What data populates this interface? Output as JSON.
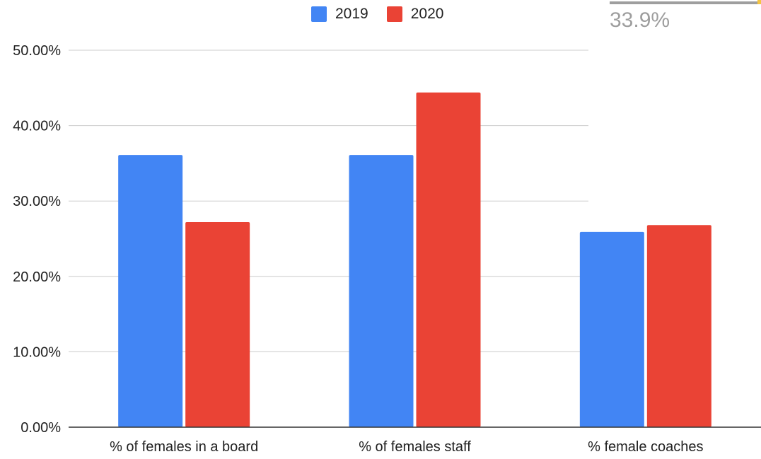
{
  "overlay": {
    "value_text": "33.9%"
  },
  "chart_data": {
    "type": "bar",
    "categories": [
      "% of females in a board",
      "% of females staff",
      "% female coaches"
    ],
    "series": [
      {
        "name": "2019",
        "color": "#4285F4",
        "values": [
          36.1,
          36.1,
          25.9
        ]
      },
      {
        "name": "2020",
        "color": "#EA4335",
        "values": [
          27.2,
          44.4,
          26.8
        ]
      }
    ],
    "yticks": [
      "0.00%",
      "10.00%",
      "20.00%",
      "30.00%",
      "40.00%",
      "50.00%"
    ],
    "ylim": [
      0,
      50
    ],
    "grid": true,
    "legend_position": "top-center"
  }
}
